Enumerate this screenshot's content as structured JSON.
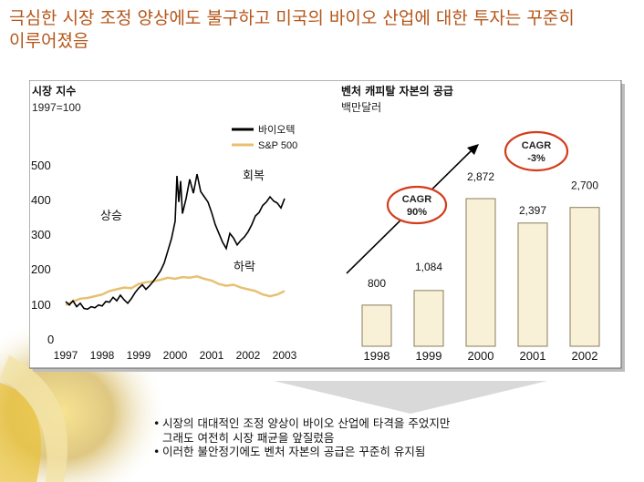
{
  "title": "극심한 시장 조정 양상에도 불구하고 미국의 바이오 산업에 대한 투자는 꾸준히\n이루어졌음",
  "left_chart_title": "시장 지수",
  "left_chart_subtitle": "1997=100",
  "right_chart_title": "벤처 캐피탈 자본의 공급",
  "right_chart_subtitle": "백만달러",
  "annotations": {
    "rise": "상승",
    "recovery": "회복",
    "fall": "하락"
  },
  "cagr_left": {
    "line1": "CAGR",
    "line2": "90%"
  },
  "cagr_right": {
    "line1": "CAGR",
    "line2": "-3%"
  },
  "colors": {
    "title": "#b5561a",
    "biotech": "#000000",
    "sp500": "#e8c070",
    "bar": "#f8f1d8",
    "bar_edge": "#8a7b5a",
    "cagr": "#d43c1c",
    "panel_border": "#666666",
    "arrow": "#d9d9d9"
  },
  "bullets": [
    "시장의 대대적인 조정 양상이 바이오 산업에 타격을 주었지만\n그래도 여전히 시장 패균을 앞질렀음",
    "이러한 불안정기에도 벤처 자본의 공급은 꾸준히 유지됨"
  ],
  "chart_data": [
    {
      "type": "line",
      "title": "시장 지수",
      "subtitle": "1997=100",
      "x_ticks": [
        "1997",
        "1998",
        "1999",
        "2000",
        "2001",
        "2002",
        "2003"
      ],
      "ylim": [
        0,
        500
      ],
      "y_ticks": [
        0,
        100,
        200,
        300,
        400,
        500
      ],
      "legend": "top-right",
      "series": [
        {
          "name": "바이오텍",
          "color": "#000000",
          "points": [
            [
              1997.0,
              110
            ],
            [
              1997.1,
              100
            ],
            [
              1997.2,
              112
            ],
            [
              1997.3,
              95
            ],
            [
              1997.4,
              105
            ],
            [
              1997.5,
              90
            ],
            [
              1997.6,
              88
            ],
            [
              1997.7,
              95
            ],
            [
              1997.8,
              92
            ],
            [
              1997.9,
              100
            ],
            [
              1998.0,
              97
            ],
            [
              1998.1,
              110
            ],
            [
              1998.2,
              108
            ],
            [
              1998.3,
              122
            ],
            [
              1998.4,
              112
            ],
            [
              1998.5,
              128
            ],
            [
              1998.6,
              115
            ],
            [
              1998.7,
              105
            ],
            [
              1998.8,
              118
            ],
            [
              1998.9,
              135
            ],
            [
              1999.0,
              148
            ],
            [
              1999.1,
              158
            ],
            [
              1999.2,
              145
            ],
            [
              1999.3,
              155
            ],
            [
              1999.4,
              168
            ],
            [
              1999.5,
              182
            ],
            [
              1999.6,
              198
            ],
            [
              1999.7,
              220
            ],
            [
              1999.8,
              255
            ],
            [
              1999.9,
              290
            ],
            [
              2000.0,
              340
            ],
            [
              2000.05,
              470
            ],
            [
              2000.1,
              395
            ],
            [
              2000.15,
              455
            ],
            [
              2000.2,
              362
            ],
            [
              2000.3,
              405
            ],
            [
              2000.4,
              460
            ],
            [
              2000.5,
              420
            ],
            [
              2000.6,
              475
            ],
            [
              2000.7,
              425
            ],
            [
              2000.8,
              410
            ],
            [
              2000.9,
              395
            ],
            [
              2001.0,
              365
            ],
            [
              2001.1,
              330
            ],
            [
              2001.2,
              305
            ],
            [
              2001.3,
              280
            ],
            [
              2001.4,
              262
            ],
            [
              2001.5,
              305
            ],
            [
              2001.6,
              292
            ],
            [
              2001.7,
              272
            ],
            [
              2001.8,
              285
            ],
            [
              2001.9,
              295
            ],
            [
              2002.0,
              310
            ],
            [
              2002.1,
              330
            ],
            [
              2002.2,
              355
            ],
            [
              2002.3,
              365
            ],
            [
              2002.4,
              385
            ],
            [
              2002.5,
              395
            ],
            [
              2002.6,
              410
            ],
            [
              2002.7,
              398
            ],
            [
              2002.8,
              392
            ],
            [
              2002.9,
              378
            ],
            [
              2003.0,
              405
            ]
          ]
        },
        {
          "name": "S&P 500",
          "color": "#e8c070",
          "points": [
            [
              1997.0,
              100
            ],
            [
              1997.2,
              110
            ],
            [
              1997.4,
              118
            ],
            [
              1997.6,
              120
            ],
            [
              1997.8,
              125
            ],
            [
              1998.0,
              130
            ],
            [
              1998.2,
              140
            ],
            [
              1998.4,
              145
            ],
            [
              1998.6,
              150
            ],
            [
              1998.8,
              148
            ],
            [
              1999.0,
              160
            ],
            [
              1999.2,
              165
            ],
            [
              1999.4,
              168
            ],
            [
              1999.6,
              172
            ],
            [
              1999.8,
              178
            ],
            [
              2000.0,
              175
            ],
            [
              2000.2,
              180
            ],
            [
              2000.4,
              178
            ],
            [
              2000.6,
              182
            ],
            [
              2000.8,
              175
            ],
            [
              2001.0,
              170
            ],
            [
              2001.2,
              160
            ],
            [
              2001.4,
              155
            ],
            [
              2001.6,
              158
            ],
            [
              2001.8,
              150
            ],
            [
              2002.0,
              145
            ],
            [
              2002.2,
              140
            ],
            [
              2002.4,
              130
            ],
            [
              2002.6,
              125
            ],
            [
              2002.8,
              130
            ],
            [
              2003.0,
              140
            ]
          ]
        }
      ]
    },
    {
      "type": "bar",
      "title": "벤처 캐피탈 자본의 공급",
      "subtitle": "백만달러",
      "categories": [
        "1998",
        "1999",
        "2000",
        "2001",
        "2002"
      ],
      "values": [
        800,
        1084,
        2872,
        2397,
        2700
      ],
      "value_labels": [
        "800",
        "1,084",
        "2,872",
        "2,397",
        "2,700"
      ]
    }
  ]
}
